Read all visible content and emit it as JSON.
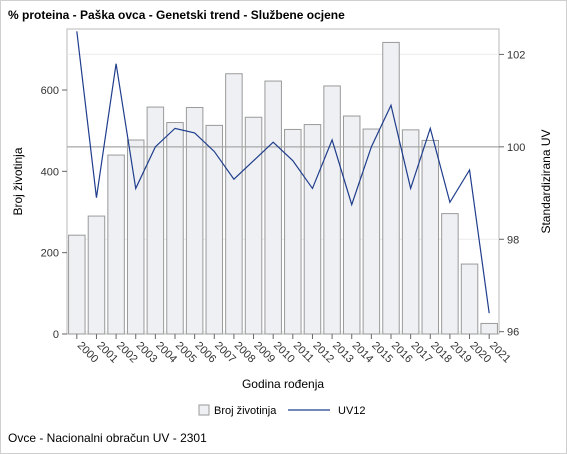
{
  "title": "% proteina - Paška ovca - Genetski trend - Službene ocjene",
  "footnote": "Ovce - Nacionalni obračun UV - 2301",
  "chart_data": {
    "type": "bar",
    "categories": [
      "2000",
      "2001",
      "2002",
      "2003",
      "2004",
      "2005",
      "2006",
      "2007",
      "2008",
      "2009",
      "2010",
      "2011",
      "2012",
      "2013",
      "2014",
      "2015",
      "2016",
      "2017",
      "2018",
      "2019",
      "2020",
      "2021"
    ],
    "series": [
      {
        "name": "Broj životinja",
        "type": "bar",
        "axis": "left",
        "values": [
          243,
          290,
          440,
          477,
          558,
          520,
          557,
          513,
          640,
          533,
          622,
          503,
          515,
          610,
          536,
          504,
          717,
          502,
          476,
          296,
          172,
          26
        ]
      },
      {
        "name": "UV12",
        "type": "line",
        "axis": "right",
        "values": [
          102.5,
          98.9,
          101.8,
          99.1,
          100.0,
          100.4,
          100.3,
          99.9,
          99.3,
          99.7,
          100.1,
          99.7,
          99.1,
          100.15,
          98.75,
          100.0,
          100.9,
          99.1,
          100.4,
          98.8,
          99.5,
          96.4
        ]
      }
    ],
    "xlabel": "Godina rođenja",
    "ylabel_left": "Broj životinja",
    "ylabel_right": "Standardizirana UV",
    "ylim_left": [
      0,
      750
    ],
    "yticks_left": [
      0,
      200,
      400,
      600
    ],
    "ylim_right": [
      95.95,
      102.55
    ],
    "yticks_right": [
      96,
      98,
      100,
      102
    ],
    "reference_line": 100,
    "legend_position": "bottom",
    "colors": {
      "bar_fill": "#eef0f4",
      "bar_stroke": "#9a9a9a",
      "line": "#1f3d8c",
      "refline": "#a7a7a7"
    }
  }
}
